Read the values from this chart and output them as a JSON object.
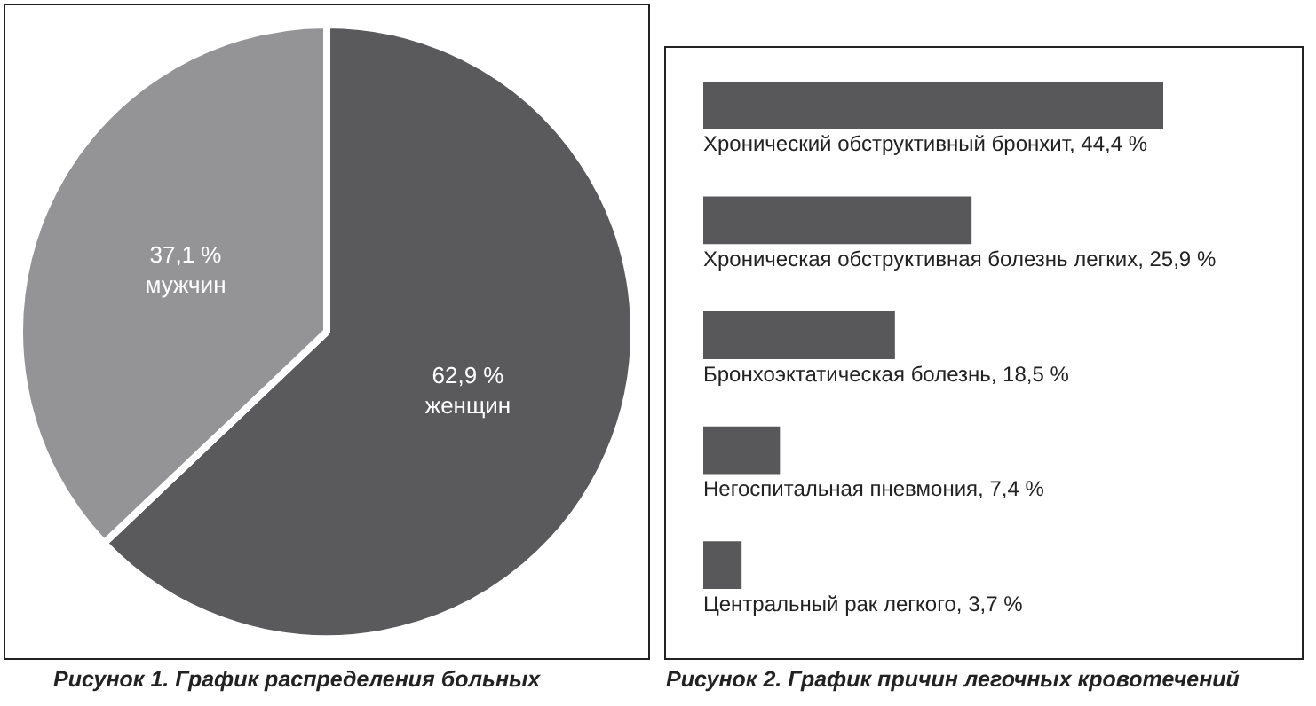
{
  "chart_data": [
    {
      "type": "pie",
      "title": "Рисунок 1. График распределения больных",
      "categories": [
        "женщин",
        "мужчин"
      ],
      "values": [
        62.9,
        37.1
      ],
      "colors": [
        "#5a5a5c",
        "#949496"
      ],
      "value_labels": [
        "62,9 %",
        "37,1 %"
      ]
    },
    {
      "type": "bar",
      "orientation": "horizontal",
      "title": "Рисунок 2. График причин легочных кровотечений",
      "categories": [
        null,
        null,
        null,
        null,
        null
      ],
      "values": [
        44.4,
        25.9,
        18.5,
        7.4,
        3.7
      ],
      "color": "#58585a",
      "value_labels": [
        "Хронический обструктивный бронхит, 44,4 %",
        "Хроническая обструктивная болезнь легких, 25,9 %",
        "Бронхоэктатическая болезнь, 18,5 %",
        "Негоспитальная пневмония, 7,4 %",
        "Центральный рак легкого, 3,7 %"
      ],
      "tick_labels": false
    }
  ]
}
